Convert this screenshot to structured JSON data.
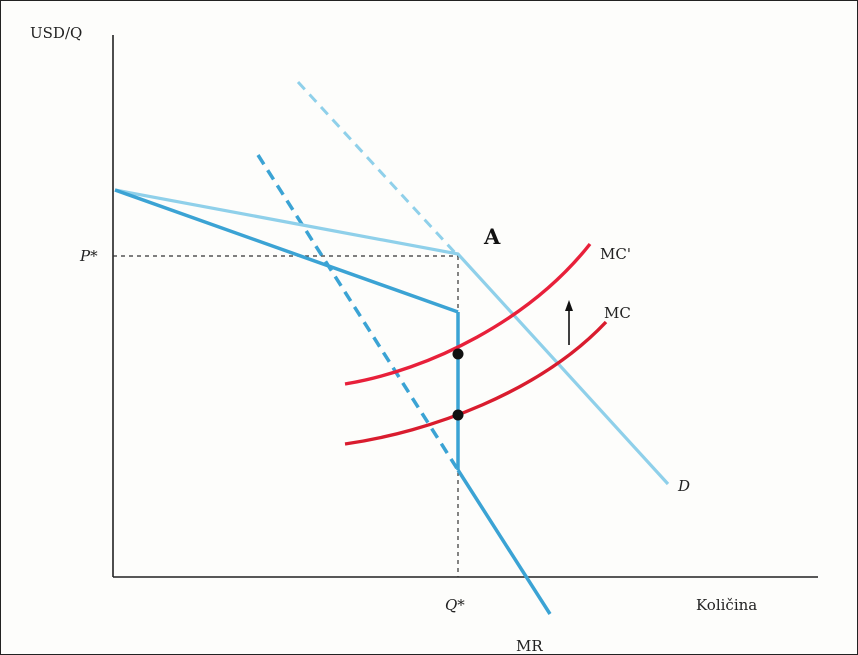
{
  "chart_data": {
    "type": "line",
    "ylabel": "USD/Q",
    "xlabel": "Količina",
    "y_tick_label": "P*",
    "x_tick_label": "Q*",
    "point_label": "A",
    "series": [
      {
        "name": "D",
        "role": "demand-solid"
      },
      {
        "name": "MR",
        "role": "marginal-revenue"
      },
      {
        "name": "MC'",
        "role": "marginal-cost-shifted"
      },
      {
        "name": "MC",
        "role": "marginal-cost"
      }
    ],
    "shift_arrow": "up",
    "grid": false,
    "colors": {
      "demand": "#8fd0ea",
      "mr": "#3ba3d4",
      "mc": "#e8203a",
      "mc_lower": "#d91c2e",
      "axis": "#222222",
      "guide": "#333333",
      "point": "#111111"
    }
  }
}
